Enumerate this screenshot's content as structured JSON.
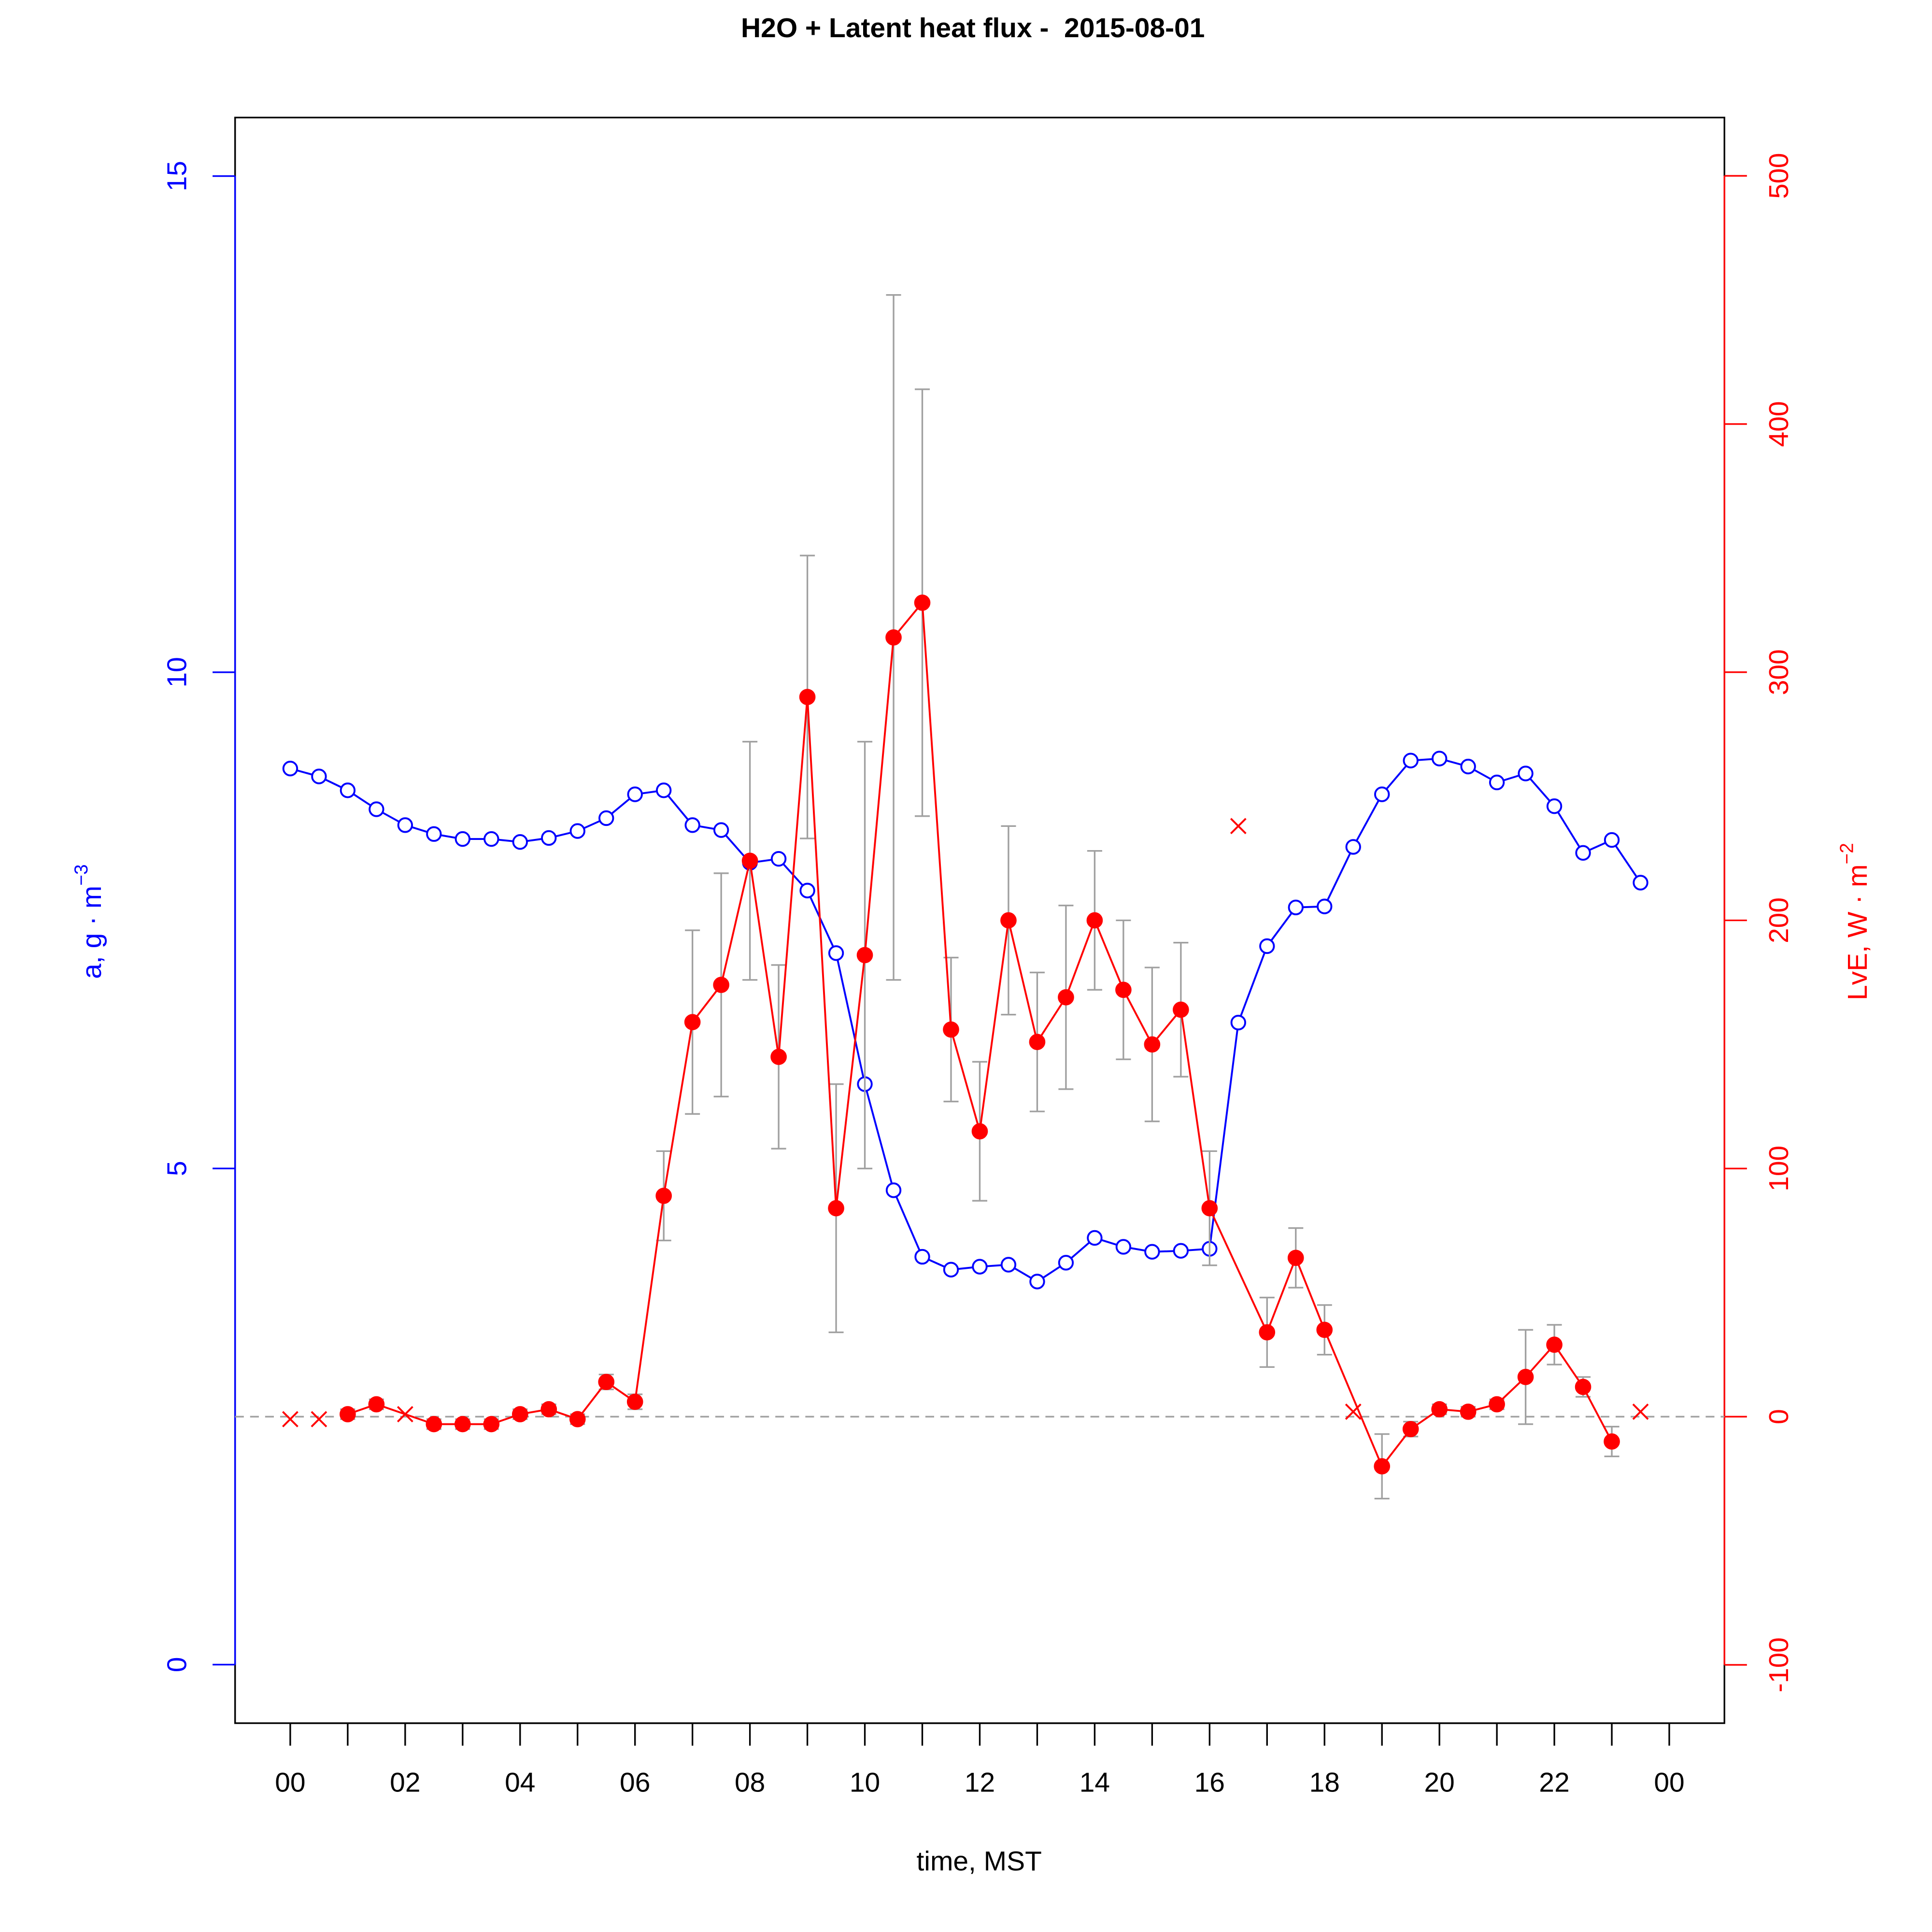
{
  "chart_data": {
    "type": "line",
    "title": "H2O + Latent heat flux -  2015-08-01",
    "xlabel": "time, MST",
    "ylabel": {
      "base": "a, g · m",
      "sup": "−3"
    },
    "y2label": {
      "base": "LvE, W · m",
      "sup": "−2"
    },
    "xlim": [
      -0.96,
      24.96
    ],
    "ylim": [
      -0.59,
      15.59
    ],
    "y2lim": [
      -123.5,
      523.5
    ],
    "xticks": [
      {
        "value": 0,
        "label": "00"
      },
      {
        "value": 1,
        "label": null
      },
      {
        "value": 2,
        "label": "02"
      },
      {
        "value": 3,
        "label": null
      },
      {
        "value": 4,
        "label": "04"
      },
      {
        "value": 5,
        "label": null
      },
      {
        "value": 6,
        "label": "06"
      },
      {
        "value": 7,
        "label": null
      },
      {
        "value": 8,
        "label": "08"
      },
      {
        "value": 9,
        "label": null
      },
      {
        "value": 10,
        "label": "10"
      },
      {
        "value": 11,
        "label": null
      },
      {
        "value": 12,
        "label": "12"
      },
      {
        "value": 13,
        "label": null
      },
      {
        "value": 14,
        "label": "14"
      },
      {
        "value": 15,
        "label": null
      },
      {
        "value": 16,
        "label": "16"
      },
      {
        "value": 17,
        "label": null
      },
      {
        "value": 18,
        "label": "18"
      },
      {
        "value": 19,
        "label": null
      },
      {
        "value": 20,
        "label": "20"
      },
      {
        "value": 21,
        "label": null
      },
      {
        "value": 22,
        "label": "22"
      },
      {
        "value": 23,
        "label": null
      },
      {
        "value": 24,
        "label": "00"
      }
    ],
    "yticks": [
      0,
      5,
      10,
      15
    ],
    "y2ticks": [
      -100,
      0,
      100,
      200,
      300,
      400,
      500
    ],
    "y_color": "#0000ff",
    "y2_color": "#ff0000",
    "y2_refline": 0,
    "refline_color": "#a0a0a0",
    "series": [
      {
        "color": "#0000ff",
        "axis": "y",
        "marker": "open-circle",
        "line": true,
        "x": [
          0,
          0.5,
          1,
          1.5,
          2,
          2.5,
          3,
          3.5,
          4,
          4.5,
          5,
          5.5,
          6,
          6.5,
          7,
          7.5,
          8,
          8.5,
          9,
          9.5,
          10,
          10.5,
          11,
          11.5,
          12,
          12.5,
          13,
          13.5,
          14,
          14.5,
          15,
          15.5,
          16,
          16.5,
          17,
          17.5,
          18,
          18.5,
          19,
          19.5,
          20,
          20.5,
          21,
          21.5,
          22,
          22.5,
          23,
          23.5
        ],
        "values": [
          9.03,
          8.95,
          8.81,
          8.62,
          8.46,
          8.37,
          8.32,
          8.32,
          8.29,
          8.33,
          8.4,
          8.53,
          8.77,
          8.81,
          8.46,
          8.41,
          8.08,
          8.12,
          7.8,
          7.17,
          5.85,
          4.78,
          4.11,
          3.98,
          4.01,
          4.03,
          3.86,
          4.05,
          4.3,
          4.21,
          4.16,
          4.17,
          4.19,
          6.47,
          7.24,
          7.63,
          7.64,
          8.24,
          8.77,
          9.11,
          9.13,
          9.05,
          8.89,
          8.98,
          8.65,
          8.18,
          8.31,
          7.88
        ]
      },
      {
        "color": "#ff0000",
        "axis": "y2",
        "marker": "filled-circle",
        "line": true,
        "error_color": "#a0a0a0",
        "x": [
          1,
          1.5,
          2.5,
          3,
          3.5,
          4,
          4.5,
          5,
          5.5,
          6,
          6.5,
          7,
          7.5,
          8,
          8.5,
          9,
          9.5,
          10,
          10.5,
          11,
          11.5,
          12,
          12.5,
          13,
          13.5,
          14,
          14.5,
          15,
          15.5,
          16,
          17,
          17.5,
          18,
          19,
          19.5,
          20,
          20.5,
          21,
          21.5,
          22,
          22.5,
          23
        ],
        "values": [
          1,
          5,
          -3,
          -3,
          -3,
          1,
          3,
          -1,
          14,
          6,
          89,
          159,
          174,
          224,
          145,
          290,
          84,
          186,
          314,
          328,
          156,
          115,
          200,
          151,
          169,
          200,
          172,
          150,
          164,
          84,
          34,
          64,
          35,
          -20,
          -5,
          3,
          2,
          5,
          16,
          29,
          12,
          -10
        ],
        "errors": [
          2,
          2,
          2,
          2,
          2,
          2,
          2,
          2,
          3,
          3,
          18,
          37,
          45,
          48,
          37,
          57,
          50,
          86,
          138,
          86,
          29,
          28,
          38,
          28,
          37,
          28,
          28,
          31,
          27,
          23,
          14,
          12,
          10,
          13,
          3,
          2,
          2,
          2,
          19,
          8,
          4,
          6
        ]
      },
      {
        "color": "#ff0000",
        "axis": "y2",
        "marker": "cross",
        "line": false,
        "x": [
          0,
          0.5,
          2,
          16.5,
          18.5,
          23.5
        ],
        "values": [
          -1,
          -1,
          1,
          238,
          2,
          2
        ]
      }
    ]
  }
}
